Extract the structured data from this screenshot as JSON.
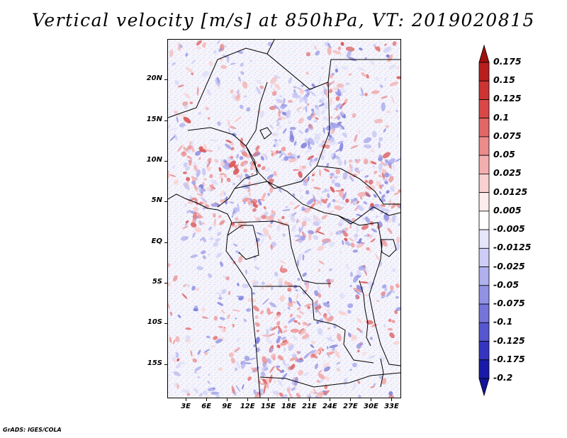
{
  "title": "Vertical velocity [m/s] at 850hPa, VT: 2019020815",
  "footer": "GrADS: IGES/COLA",
  "map": {
    "lat_labels": [
      "20N",
      "15N",
      "10N",
      "5N",
      "EQ",
      "5S",
      "10S",
      "15S"
    ],
    "lon_labels": [
      "3E",
      "6E",
      "9E",
      "12E",
      "15E",
      "18E",
      "21E",
      "24E",
      "27E",
      "30E",
      "33E"
    ],
    "lat_values": [
      20,
      15,
      10,
      5,
      0,
      -5,
      -10,
      -15
    ],
    "lon_values": [
      3,
      6,
      9,
      12,
      15,
      18,
      21,
      24,
      27,
      30,
      33
    ],
    "extent": {
      "lon_min": 0.3,
      "lon_max": 34.4,
      "lat_min": -19.2,
      "lat_max": 25.0
    }
  },
  "colorbar": {
    "labels": [
      "0.175",
      "0.15",
      "0.125",
      "0.1",
      "0.075",
      "0.05",
      "0.025",
      "0.0125",
      "0.005",
      "-0.005",
      "-0.0125",
      "-0.025",
      "-0.05",
      "-0.075",
      "-0.1",
      "-0.125",
      "-0.175",
      "-0.2"
    ],
    "colors": [
      "#a01010",
      "#b81e1e",
      "#cc3333",
      "#d94848",
      "#e26767",
      "#ec8b8b",
      "#f3afaf",
      "#f8d0d0",
      "#fdecec",
      "#ffffff",
      "#e6e6fa",
      "#cdcdf6",
      "#b0b0ee",
      "#9292e4",
      "#7474da",
      "#5656cf",
      "#3535c0",
      "#1a1aa8",
      "#12129a"
    ]
  }
}
